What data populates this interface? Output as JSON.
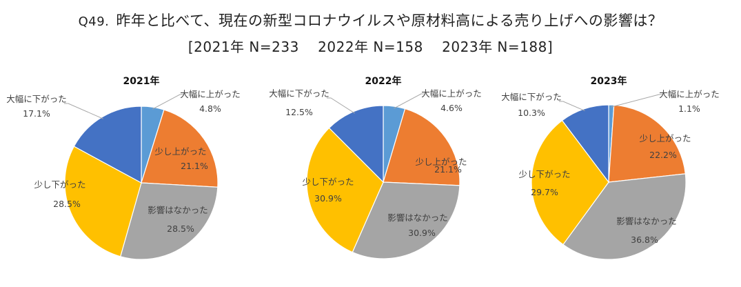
{
  "header": {
    "qnum": "Q49.",
    "title": "昨年と比べて、現在の新型コロナウイルスや原材料高による売り上げへの影響は？",
    "subtitle": "[2021年 N=233　 2022年 N=158　 2023年 N=188]"
  },
  "colors": {
    "大幅に上がった": "#5B9BD5",
    "少し上がった": "#ED7D31",
    "影響はなかった": "#A5A5A5",
    "少し下がった": "#FFC000",
    "大幅に下がった": "#4472C4"
  },
  "chart_data": [
    {
      "type": "pie",
      "title": "2021年",
      "categories": [
        "大幅に上がった",
        "少し上がった",
        "影響はなかった",
        "少し下がった",
        "大幅に下がった"
      ],
      "values": [
        4.8,
        21.1,
        28.5,
        28.5,
        17.1
      ],
      "value_labels": [
        "4.8%",
        "21.1%",
        "28.5%",
        "28.5%",
        "17.1%"
      ]
    },
    {
      "type": "pie",
      "title": "2022年",
      "categories": [
        "大幅に上がった",
        "少し上がった",
        "影響はなかった",
        "少し下がった",
        "大幅に下がった"
      ],
      "values": [
        4.6,
        21.1,
        30.9,
        30.9,
        12.5
      ],
      "value_labels": [
        "4.6%",
        "21.1%",
        "30.9%",
        "30.9%",
        "12.5%"
      ]
    },
    {
      "type": "pie",
      "title": "2023年",
      "categories": [
        "大幅に上がった",
        "少し上がった",
        "影響はなかった",
        "少し下がった",
        "大幅に下がった"
      ],
      "values": [
        1.1,
        22.2,
        36.8,
        29.7,
        10.3
      ],
      "value_labels": [
        "1.1%",
        "22.2%",
        "36.8%",
        "29.7%",
        "10.3%"
      ]
    }
  ]
}
